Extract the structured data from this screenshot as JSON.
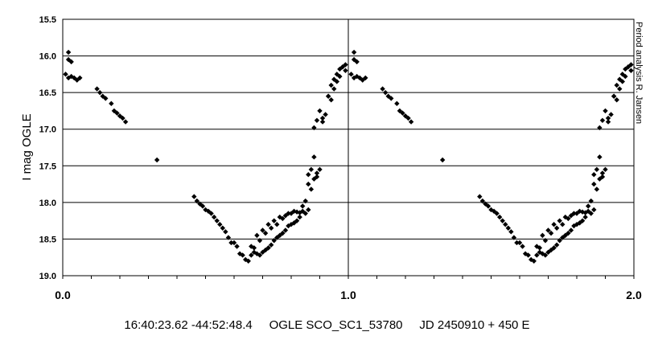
{
  "chart_data": {
    "type": "scatter",
    "title": "",
    "xlabel": "",
    "ylabel": "I mag OGLE",
    "side_note": "Period analysis R. Jansen",
    "footer_coords": "16:40:23.62 -44:52:48.4",
    "footer_star": "OGLE SCO_SC1_53780",
    "footer_ephemeris": "JD 2450910 + 450 E",
    "xlim": [
      0.0,
      2.0
    ],
    "ylim": [
      15.5,
      19.0
    ],
    "y_inverted": true,
    "grid": "horizontal",
    "x_ticks": [
      "0.0",
      "1.0",
      "2.0"
    ],
    "y_ticks": [
      "15.5",
      "16.0",
      "16.5",
      "17.0",
      "17.5",
      "18.0",
      "18.5",
      "19.0"
    ],
    "marker_color": "#000000",
    "series": [
      {
        "x": [
          0.01,
          0.02,
          0.02,
          0.03,
          0.02,
          0.03,
          0.04,
          0.05,
          0.06,
          0.12,
          0.13,
          0.14,
          0.15,
          0.17,
          0.18,
          0.19,
          0.2,
          0.21,
          0.22,
          0.33,
          0.46,
          0.47,
          0.48,
          0.49,
          0.5,
          0.51,
          0.52,
          0.53,
          0.54,
          0.55,
          0.56,
          0.57,
          0.58,
          0.59,
          0.6,
          0.61,
          0.62,
          0.63,
          0.64,
          0.65,
          0.66,
          0.67,
          0.68,
          0.69,
          0.7,
          0.71,
          0.72,
          0.73,
          0.74,
          0.75,
          0.76,
          0.77,
          0.78,
          0.79,
          0.8,
          0.81,
          0.82,
          0.83,
          0.66,
          0.68,
          0.7,
          0.72,
          0.74,
          0.76,
          0.78,
          0.8,
          0.82,
          0.84,
          0.67,
          0.69,
          0.71,
          0.73,
          0.75,
          0.77,
          0.79,
          0.81,
          0.83,
          0.85,
          0.84,
          0.85,
          0.86,
          0.86,
          0.87,
          0.88,
          0.89,
          0.89,
          0.9,
          0.91,
          0.91,
          0.92,
          0.93,
          0.94,
          0.95,
          0.96,
          0.97,
          0.98,
          0.99,
          0.88,
          0.89,
          0.9,
          0.93,
          0.94,
          0.95,
          0.96,
          0.97,
          0.99,
          0.86,
          0.87,
          0.88
        ],
        "y": [
          16.25,
          16.05,
          15.95,
          16.08,
          16.3,
          16.28,
          16.3,
          16.33,
          16.3,
          16.45,
          16.5,
          16.55,
          16.58,
          16.65,
          16.75,
          16.78,
          16.82,
          16.85,
          16.9,
          17.42,
          17.92,
          17.98,
          18.02,
          18.05,
          18.1,
          18.12,
          18.15,
          18.2,
          18.25,
          18.3,
          18.35,
          18.4,
          18.48,
          18.55,
          18.55,
          18.6,
          18.7,
          18.72,
          18.78,
          18.8,
          18.72,
          18.68,
          18.7,
          18.72,
          18.68,
          18.65,
          18.62,
          18.58,
          18.52,
          18.48,
          18.45,
          18.42,
          18.38,
          18.32,
          18.3,
          18.28,
          18.25,
          18.2,
          18.6,
          18.45,
          18.38,
          18.3,
          18.25,
          18.2,
          18.18,
          18.15,
          18.13,
          18.12,
          18.62,
          18.52,
          18.42,
          18.35,
          18.3,
          18.22,
          18.15,
          18.12,
          18.14,
          18.15,
          18.05,
          17.98,
          17.75,
          17.62,
          17.55,
          17.38,
          17.65,
          17.6,
          17.55,
          16.9,
          16.85,
          16.8,
          16.55,
          16.4,
          16.32,
          16.25,
          16.18,
          16.15,
          16.12,
          16.98,
          16.88,
          16.75,
          16.55,
          16.6,
          16.45,
          16.35,
          16.28,
          16.2,
          18.1,
          17.82,
          17.68
        ],
        "repeat_offset": 1.0
      }
    ]
  }
}
